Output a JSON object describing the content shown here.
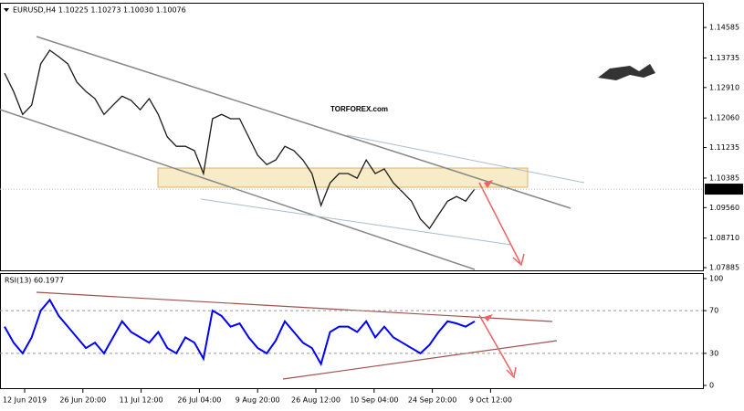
{
  "chart_data": {
    "type": "line",
    "title": "EURUSD,H4  1.10225 1.10273 1.10030 1.10076",
    "logo": "TORFOREX.com",
    "x_labels": [
      "12 Jun 2019",
      "26 Jun 20:00",
      "11 Jul 12:00",
      "26 Jul 04:00",
      "9 Aug 20:00",
      "26 Aug 12:00",
      "10 Sep 04:00",
      "24 Sep 20:00",
      "9 Oct 12:00"
    ],
    "series": [
      {
        "name": "EURUSD",
        "color": "#1a1a1a",
        "values": [
          1.1331,
          1.128,
          1.1216,
          1.1242,
          1.1357,
          1.1395,
          1.1377,
          1.1357,
          1.1306,
          1.128,
          1.126,
          1.1216,
          1.1242,
          1.1267,
          1.1255,
          1.1229,
          1.126,
          1.1216,
          1.1153,
          1.1127,
          1.1127,
          1.1115,
          1.1051,
          1.1204,
          1.1216,
          1.1204,
          1.1204,
          1.1153,
          1.1102,
          1.1076,
          1.1089,
          1.1127,
          1.1115,
          1.1089,
          1.1051,
          1.0962,
          1.1025,
          1.1051,
          1.1051,
          1.1038,
          1.1089,
          1.1051,
          1.1064,
          1.1025,
          1.1,
          1.0974,
          1.0924,
          1.0898,
          1.0936,
          1.0974,
          1.0987,
          1.0974,
          1.1008
        ]
      }
    ],
    "last_price": 1.10076,
    "ylim": [
      1.0781,
      1.1525
    ],
    "yticks": [
      1.14585,
      1.13735,
      {
        "value": 1.1291,
        "label": "1.12910"
      },
      {
        "value": 1.1206,
        "label": "1.12060"
      },
      1.11235,
      1.10385,
      {
        "value": 1.0956,
        "label": "1.09560"
      },
      {
        "value": 1.0871,
        "label": "1.08710"
      },
      1.07885
    ],
    "rsi": {
      "title": "RSI(13) 60.1977",
      "color": "#0000ff",
      "values": [
        55,
        40,
        30,
        45,
        70,
        80,
        65,
        55,
        45,
        35,
        40,
        30,
        45,
        60,
        50,
        45,
        40,
        50,
        35,
        30,
        45,
        40,
        25,
        70,
        65,
        55,
        58,
        45,
        35,
        30,
        42,
        60,
        50,
        40,
        35,
        20,
        50,
        55,
        55,
        50,
        60,
        45,
        55,
        45,
        40,
        35,
        30,
        38,
        50,
        60,
        58,
        55,
        60
      ],
      "ylim": [
        0,
        100
      ],
      "yticks": [
        100,
        70,
        30,
        0
      ],
      "levels": [
        70,
        30
      ]
    }
  }
}
